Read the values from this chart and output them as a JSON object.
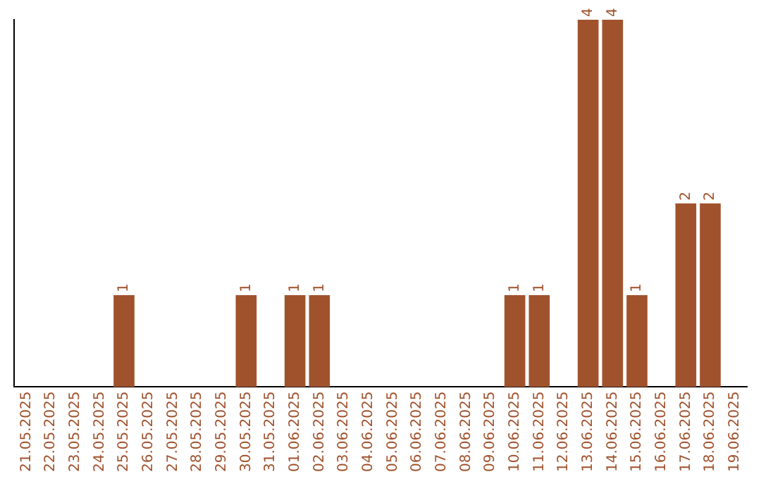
{
  "chart_data": {
    "type": "bar",
    "categories": [
      "21.05.2025",
      "22.05.2025",
      "23.05.2025",
      "24.05.2025",
      "25.05.2025",
      "26.05.2025",
      "27.05.2025",
      "28.05.2025",
      "29.05.2025",
      "30.05.2025",
      "31.05.2025",
      "01.06.2025",
      "02.06.2025",
      "03.06.2025",
      "04.06.2025",
      "05.06.2025",
      "06.06.2025",
      "07.06.2025",
      "08.06.2025",
      "09.06.2025",
      "10.06.2025",
      "11.06.2025",
      "12.06.2025",
      "13.06.2025",
      "14.06.2025",
      "15.06.2025",
      "16.06.2025",
      "17.06.2025",
      "18.06.2025",
      "19.06.2025"
    ],
    "values": [
      0,
      0,
      0,
      0,
      1,
      0,
      0,
      0,
      0,
      1,
      0,
      1,
      1,
      0,
      0,
      0,
      0,
      0,
      0,
      0,
      1,
      1,
      0,
      4,
      4,
      1,
      0,
      2,
      2,
      0
    ],
    "color": "#a0522d",
    "value_labels": [
      null,
      null,
      null,
      null,
      "1",
      null,
      null,
      null,
      null,
      "1",
      null,
      "1",
      "1",
      null,
      null,
      null,
      null,
      null,
      null,
      null,
      "1",
      "1",
      null,
      "4",
      "4",
      "1",
      null,
      "2",
      "2",
      null
    ],
    "grid": false,
    "legend": false,
    "tick_labels": "x"
  }
}
